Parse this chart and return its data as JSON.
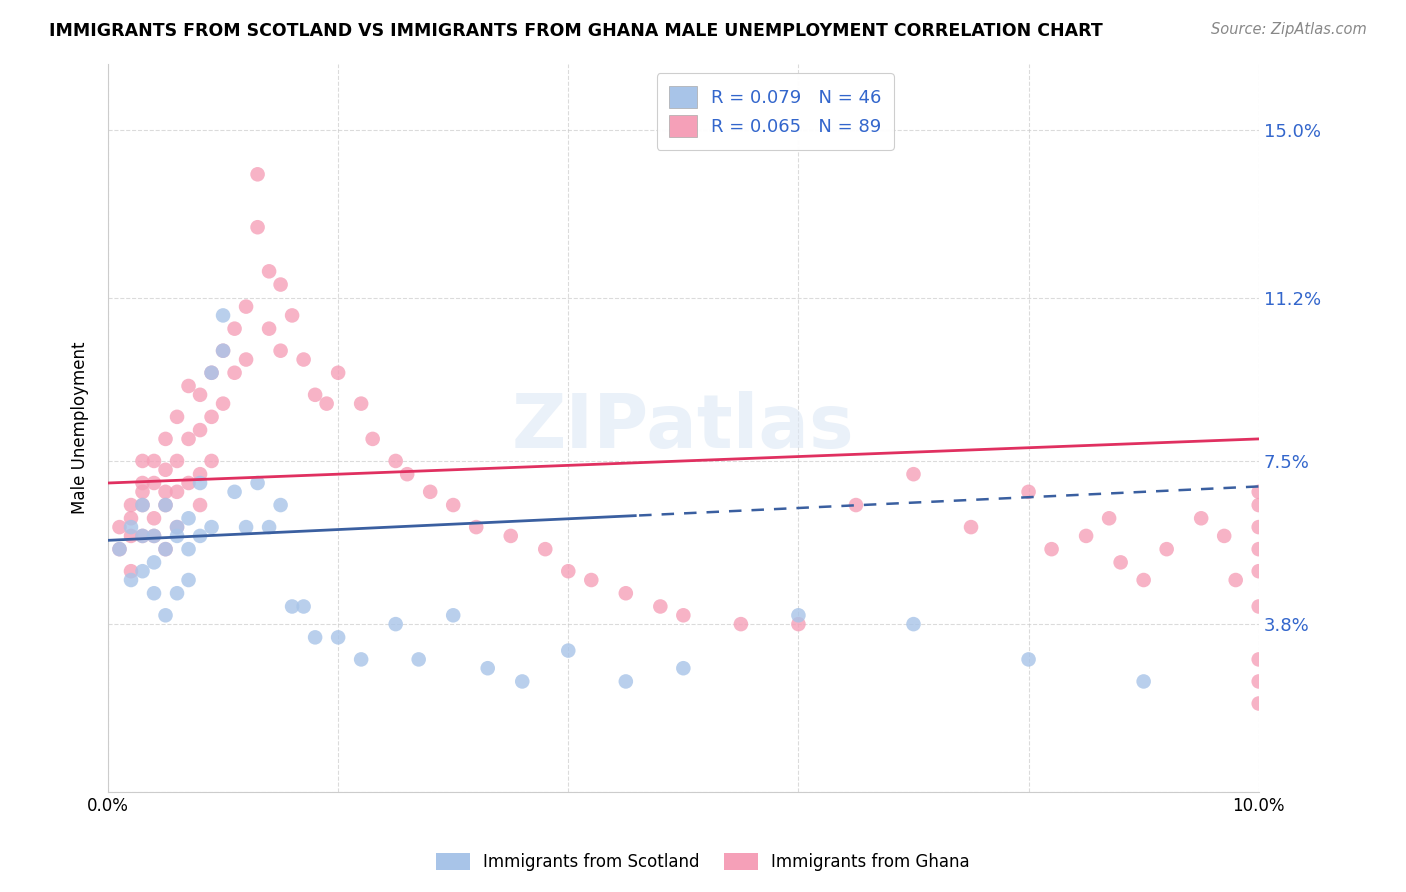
{
  "title": "IMMIGRANTS FROM SCOTLAND VS IMMIGRANTS FROM GHANA MALE UNEMPLOYMENT CORRELATION CHART",
  "source": "Source: ZipAtlas.com",
  "ylabel": "Male Unemployment",
  "yticks": [
    0.0,
    0.038,
    0.075,
    0.112,
    0.15
  ],
  "ytick_labels": [
    "",
    "3.8%",
    "7.5%",
    "11.2%",
    "15.0%"
  ],
  "xlim": [
    0.0,
    0.1
  ],
  "ylim": [
    0.0,
    0.165
  ],
  "scotland_color": "#a8c4e8",
  "ghana_color": "#f5a0b8",
  "scotland_R": 0.079,
  "scotland_N": 46,
  "ghana_R": 0.065,
  "ghana_N": 89,
  "scotland_line_color": "#3a5fa0",
  "ghana_line_color": "#e03060",
  "legend_text_color": "#3366cc",
  "watermark": "ZIPatlas",
  "scotland_x": [
    0.001,
    0.002,
    0.002,
    0.003,
    0.003,
    0.003,
    0.004,
    0.004,
    0.004,
    0.005,
    0.005,
    0.005,
    0.006,
    0.006,
    0.006,
    0.007,
    0.007,
    0.007,
    0.008,
    0.008,
    0.009,
    0.009,
    0.01,
    0.01,
    0.011,
    0.012,
    0.013,
    0.014,
    0.015,
    0.016,
    0.017,
    0.018,
    0.02,
    0.022,
    0.025,
    0.027,
    0.03,
    0.033,
    0.036,
    0.04,
    0.045,
    0.05,
    0.06,
    0.07,
    0.08,
    0.09
  ],
  "scotland_y": [
    0.055,
    0.048,
    0.06,
    0.05,
    0.058,
    0.065,
    0.052,
    0.058,
    0.045,
    0.055,
    0.04,
    0.065,
    0.06,
    0.045,
    0.058,
    0.062,
    0.048,
    0.055,
    0.058,
    0.07,
    0.095,
    0.06,
    0.1,
    0.108,
    0.068,
    0.06,
    0.07,
    0.06,
    0.065,
    0.042,
    0.042,
    0.035,
    0.035,
    0.03,
    0.038,
    0.03,
    0.04,
    0.028,
    0.025,
    0.032,
    0.025,
    0.028,
    0.04,
    0.038,
    0.03,
    0.025
  ],
  "ghana_x": [
    0.001,
    0.001,
    0.002,
    0.002,
    0.002,
    0.002,
    0.003,
    0.003,
    0.003,
    0.003,
    0.003,
    0.004,
    0.004,
    0.004,
    0.004,
    0.005,
    0.005,
    0.005,
    0.005,
    0.005,
    0.006,
    0.006,
    0.006,
    0.006,
    0.007,
    0.007,
    0.007,
    0.008,
    0.008,
    0.008,
    0.008,
    0.009,
    0.009,
    0.009,
    0.01,
    0.01,
    0.011,
    0.011,
    0.012,
    0.012,
    0.013,
    0.013,
    0.014,
    0.014,
    0.015,
    0.015,
    0.016,
    0.017,
    0.018,
    0.019,
    0.02,
    0.022,
    0.023,
    0.025,
    0.026,
    0.028,
    0.03,
    0.032,
    0.035,
    0.038,
    0.04,
    0.042,
    0.045,
    0.048,
    0.05,
    0.055,
    0.06,
    0.065,
    0.07,
    0.075,
    0.08,
    0.082,
    0.085,
    0.087,
    0.088,
    0.09,
    0.092,
    0.095,
    0.097,
    0.098,
    0.1,
    0.1,
    0.1,
    0.1,
    0.1,
    0.1,
    0.1,
    0.1,
    0.1
  ],
  "ghana_y": [
    0.06,
    0.055,
    0.065,
    0.062,
    0.058,
    0.05,
    0.07,
    0.065,
    0.058,
    0.075,
    0.068,
    0.062,
    0.075,
    0.07,
    0.058,
    0.08,
    0.068,
    0.073,
    0.065,
    0.055,
    0.085,
    0.075,
    0.068,
    0.06,
    0.092,
    0.08,
    0.07,
    0.09,
    0.082,
    0.072,
    0.065,
    0.095,
    0.085,
    0.075,
    0.1,
    0.088,
    0.105,
    0.095,
    0.11,
    0.098,
    0.14,
    0.128,
    0.118,
    0.105,
    0.115,
    0.1,
    0.108,
    0.098,
    0.09,
    0.088,
    0.095,
    0.088,
    0.08,
    0.075,
    0.072,
    0.068,
    0.065,
    0.06,
    0.058,
    0.055,
    0.05,
    0.048,
    0.045,
    0.042,
    0.04,
    0.038,
    0.038,
    0.065,
    0.072,
    0.06,
    0.068,
    0.055,
    0.058,
    0.062,
    0.052,
    0.048,
    0.055,
    0.062,
    0.058,
    0.048,
    0.065,
    0.05,
    0.06,
    0.068,
    0.055,
    0.042,
    0.03,
    0.025,
    0.02
  ]
}
